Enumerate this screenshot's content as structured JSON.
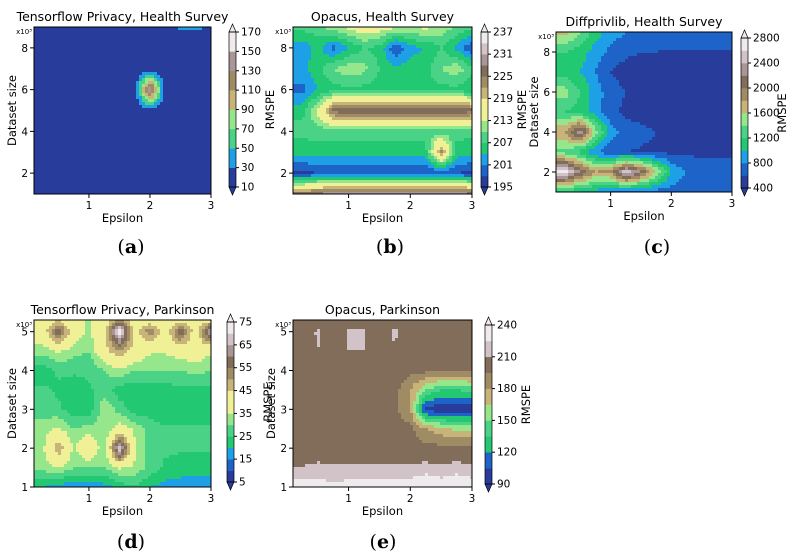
{
  "colors": {
    "scale": [
      "#283c9b",
      "#1e64c8",
      "#1ea0e6",
      "#23c873",
      "#4ad286",
      "#96e68c",
      "#f0f096",
      "#c8b478",
      "#a08c64",
      "#826c5a",
      "#aa9696",
      "#d2c3c8",
      "#eeeaee"
    ],
    "frame": "#000000"
  },
  "chart_data": [
    {
      "panel": "a",
      "type": "contour",
      "title": "Tensorflow Privacy, Health Survey",
      "xlabel": "Epsilon",
      "ylabel": "Dataset size",
      "y_multiplier": "x10³",
      "cbar_label": "RMSPE",
      "xlim": [
        0.1,
        3
      ],
      "ylim": [
        1,
        9
      ],
      "xticks": [
        "1",
        "2",
        "3"
      ],
      "yticks": [
        "2",
        "4",
        "6",
        "8"
      ],
      "cbar_ticks": [
        "170",
        "150",
        "130",
        "110",
        "90",
        "70",
        "50",
        "30",
        "10"
      ],
      "levels": [
        10,
        30,
        50,
        70,
        90,
        110,
        130,
        150,
        170
      ],
      "vmin": 10,
      "vmax": 170,
      "caption": "a",
      "x": [
        0.25,
        0.5,
        0.75,
        1.0,
        1.25,
        1.5,
        1.75,
        2.0,
        2.25,
        2.5,
        2.75,
        3.0
      ],
      "y": [
        1,
        2,
        3,
        4,
        5,
        6,
        7,
        8,
        9
      ],
      "z": [
        [
          30,
          28,
          25,
          22,
          20,
          20,
          20,
          24,
          28,
          30,
          28,
          25
        ],
        [
          22,
          20,
          18,
          16,
          15,
          15,
          15,
          18,
          22,
          25,
          22,
          20
        ],
        [
          20,
          18,
          16,
          15,
          14,
          14,
          14,
          15,
          16,
          18,
          16,
          15
        ],
        [
          20,
          18,
          16,
          15,
          14,
          14,
          14,
          15,
          15,
          15,
          15,
          15
        ],
        [
          20,
          18,
          16,
          15,
          14,
          14,
          14,
          15,
          15,
          15,
          15,
          15
        ],
        [
          20,
          18,
          16,
          15,
          14,
          14,
          14,
          160,
          15,
          15,
          15,
          15
        ],
        [
          20,
          18,
          16,
          15,
          14,
          14,
          14,
          15,
          15,
          15,
          15,
          15
        ],
        [
          22,
          20,
          18,
          15,
          14,
          14,
          14,
          15,
          15,
          15,
          15,
          18
        ],
        [
          30,
          30,
          28,
          25,
          22,
          22,
          22,
          25,
          28,
          32,
          32,
          30
        ]
      ]
    },
    {
      "panel": "b",
      "type": "contour",
      "title": "Opacus, Health Survey",
      "xlabel": "Epsilon",
      "ylabel": "",
      "y_multiplier": "x10³",
      "cbar_label": "RMSPE",
      "xlim": [
        0.1,
        3
      ],
      "ylim": [
        1,
        9
      ],
      "xticks": [
        "1",
        "2",
        "3"
      ],
      "yticks": [
        "2",
        "4",
        "6",
        "8"
      ],
      "cbar_ticks": [
        "237",
        "231",
        "225",
        "219",
        "213",
        "207",
        "201",
        "195"
      ],
      "levels": [
        195,
        198,
        201,
        204,
        207,
        210,
        213,
        216,
        219,
        222,
        225,
        228,
        231,
        234,
        237
      ],
      "vmin": 195,
      "vmax": 237,
      "caption": "b",
      "x": [
        0.25,
        0.5,
        0.75,
        1.0,
        1.25,
        1.5,
        1.75,
        2.0,
        2.25,
        2.5,
        2.75,
        3.0
      ],
      "y": [
        1,
        2,
        3,
        4,
        5,
        6,
        7,
        8,
        9
      ],
      "z": [
        [
          226,
          228,
          230,
          230,
          230,
          230,
          230,
          230,
          230,
          230,
          230,
          228
        ],
        [
          197,
          198,
          198,
          198,
          198,
          198,
          198,
          198,
          198,
          198,
          198,
          197
        ],
        [
          205,
          206,
          206,
          206,
          206,
          206,
          206,
          206,
          206,
          224,
          206,
          205
        ],
        [
          208,
          208,
          208,
          208,
          208,
          208,
          208,
          208,
          208,
          208,
          208,
          208
        ],
        [
          206,
          214,
          226,
          228,
          228,
          228,
          228,
          228,
          228,
          228,
          228,
          226
        ],
        [
          200,
          204,
          206,
          206,
          206,
          206,
          206,
          206,
          206,
          206,
          206,
          204
        ],
        [
          203,
          206,
          210,
          212,
          211,
          207,
          205,
          205,
          206,
          210,
          212,
          208
        ],
        [
          202,
          205,
          200,
          204,
          207,
          206,
          198,
          203,
          204,
          207,
          203,
          198
        ],
        [
          208,
          209,
          212,
          214,
          216,
          215,
          214,
          213,
          214,
          212,
          210,
          208
        ]
      ]
    },
    {
      "panel": "c",
      "type": "contour",
      "title": "Diffprivlib, Health Survey",
      "xlabel": "Epsilon",
      "ylabel": "Dataset size",
      "y_multiplier": "x10³",
      "cbar_label": "RMSPE",
      "xlim": [
        0.1,
        3
      ],
      "ylim": [
        1,
        9
      ],
      "xticks": [
        "1",
        "2",
        "3"
      ],
      "yticks": [
        "2",
        "4",
        "6",
        "8"
      ],
      "cbar_ticks": [
        "2800",
        "2400",
        "2000",
        "1600",
        "1200",
        "800",
        "400"
      ],
      "levels": [
        400,
        600,
        800,
        1000,
        1200,
        1400,
        1600,
        1800,
        2000,
        2200,
        2400,
        2600,
        2800
      ],
      "vmin": 400,
      "vmax": 2800,
      "caption": "c",
      "x": [
        0.25,
        0.5,
        0.75,
        1.0,
        1.25,
        1.5,
        1.75,
        2.0,
        2.25,
        2.5,
        2.75,
        3.0
      ],
      "y": [
        1,
        2,
        3,
        4,
        5,
        6,
        7,
        8,
        9
      ],
      "z": [
        [
          1100,
          1000,
          900,
          800,
          750,
          700,
          700,
          700,
          650,
          650,
          650,
          650
        ],
        [
          2700,
          2200,
          1800,
          1900,
          2600,
          2200,
          1600,
          1000,
          800,
          750,
          700,
          700
        ],
        [
          1300,
          1100,
          800,
          650,
          600,
          580,
          560,
          550,
          550,
          550,
          550,
          550
        ],
        [
          1800,
          2400,
          1500,
          900,
          700,
          650,
          600,
          550,
          520,
          520,
          520,
          520
        ],
        [
          1200,
          1100,
          900,
          650,
          550,
          520,
          500,
          500,
          500,
          500,
          500,
          500
        ],
        [
          1500,
          1200,
          900,
          700,
          600,
          580,
          570,
          560,
          550,
          550,
          550,
          550
        ],
        [
          1100,
          1000,
          800,
          600,
          500,
          480,
          470,
          460,
          460,
          460,
          460,
          460
        ],
        [
          1200,
          1100,
          900,
          750,
          650,
          600,
          600,
          580,
          580,
          580,
          580,
          580
        ],
        [
          1700,
          1400,
          1100,
          900,
          800,
          800,
          750,
          750,
          750,
          750,
          750,
          750
        ]
      ]
    },
    {
      "panel": "d",
      "type": "contour",
      "title": "Tensorflow Privacy, Parkinson",
      "xlabel": "Epsilon",
      "ylabel": "Dataset size",
      "y_multiplier": "x10³",
      "cbar_label": "RMSPE",
      "xlim": [
        0.1,
        3
      ],
      "ylim": [
        1,
        5.3
      ],
      "xticks": [
        "1",
        "2",
        "3"
      ],
      "yticks": [
        "1",
        "2",
        "3",
        "4",
        "5"
      ],
      "cbar_ticks": [
        "75",
        "65",
        "55",
        "45",
        "35",
        "25",
        "15",
        "5"
      ],
      "levels": [
        5,
        10,
        15,
        20,
        25,
        30,
        35,
        40,
        45,
        50,
        55,
        60,
        65,
        70,
        75
      ],
      "vmin": 5,
      "vmax": 75,
      "caption": "d",
      "x": [
        0.25,
        0.5,
        0.75,
        1.0,
        1.25,
        1.5,
        1.75,
        2.0,
        2.25,
        2.5,
        2.75,
        3.0
      ],
      "y": [
        1,
        1.5,
        2,
        2.5,
        3,
        3.5,
        4,
        4.5,
        5,
        5.3
      ],
      "z": [
        [
          20,
          18,
          16,
          16,
          18,
          22,
          24,
          20,
          18,
          18,
          18,
          18
        ],
        [
          32,
          36,
          30,
          30,
          30,
          36,
          34,
          28,
          24,
          22,
          22,
          22
        ],
        [
          34,
          50,
          34,
          44,
          30,
          70,
          36,
          28,
          26,
          26,
          26,
          26
        ],
        [
          32,
          36,
          30,
          32,
          30,
          38,
          34,
          28,
          26,
          26,
          26,
          26
        ],
        [
          28,
          26,
          22,
          22,
          34,
          28,
          22,
          22,
          20,
          22,
          22,
          22
        ],
        [
          26,
          24,
          22,
          24,
          28,
          22,
          22,
          22,
          22,
          24,
          24,
          24
        ],
        [
          22,
          26,
          26,
          26,
          30,
          34,
          30,
          30,
          30,
          30,
          32,
          30
        ],
        [
          32,
          36,
          32,
          30,
          42,
          50,
          42,
          36,
          36,
          38,
          40,
          36
        ],
        [
          40,
          60,
          40,
          34,
          42,
          74,
          42,
          54,
          40,
          60,
          40,
          68
        ],
        [
          38,
          44,
          38,
          34,
          40,
          50,
          40,
          40,
          38,
          42,
          40,
          42
        ]
      ]
    },
    {
      "panel": "e",
      "type": "contour",
      "title": "Opacus, Parkinson",
      "xlabel": "Epsilon",
      "ylabel": "Dataset size",
      "y_multiplier": "x10³",
      "cbar_label": "RMSPE",
      "xlim": [
        0.1,
        3
      ],
      "ylim": [
        1,
        5.3
      ],
      "xticks": [
        "1",
        "2",
        "3"
      ],
      "yticks": [
        "1",
        "2",
        "3",
        "4",
        "5"
      ],
      "cbar_ticks": [
        "240",
        "210",
        "180",
        "150",
        "120",
        "90"
      ],
      "levels": [
        90,
        105,
        120,
        135,
        150,
        165,
        180,
        195,
        210,
        225,
        240
      ],
      "vmin": 90,
      "vmax": 240,
      "caption": "e",
      "x": [
        0.25,
        0.5,
        0.75,
        1.0,
        1.25,
        1.5,
        1.75,
        2.0,
        2.25,
        2.5,
        2.75,
        3.0
      ],
      "y": [
        1,
        1.5,
        2,
        2.5,
        3,
        3.5,
        4,
        4.5,
        5,
        5.3
      ],
      "z": [
        [
          236,
          232,
          230,
          232,
          232,
          232,
          232,
          236,
          246,
          236,
          246,
          236
        ],
        [
          210,
          214,
          212,
          212,
          212,
          212,
          212,
          212,
          214,
          212,
          214,
          212
        ],
        [
          202,
          200,
          200,
          200,
          200,
          200,
          200,
          200,
          200,
          200,
          200,
          200
        ],
        [
          200,
          200,
          200,
          200,
          200,
          200,
          200,
          200,
          180,
          170,
          160,
          160
        ],
        [
          200,
          210,
          200,
          200,
          200,
          200,
          200,
          180,
          100,
          92,
          92,
          94
        ],
        [
          200,
          200,
          200,
          200,
          200,
          200,
          200,
          180,
          150,
          135,
          135,
          140
        ],
        [
          200,
          205,
          200,
          205,
          205,
          200,
          205,
          200,
          200,
          200,
          200,
          200
        ],
        [
          200,
          210,
          200,
          210,
          210,
          200,
          210,
          200,
          205,
          200,
          205,
          205
        ],
        [
          200,
          212,
          200,
          212,
          212,
          200,
          212,
          200,
          205,
          200,
          205,
          205
        ],
        [
          200,
          206,
          200,
          206,
          206,
          200,
          206,
          200,
          200,
          200,
          200,
          200
        ]
      ]
    }
  ]
}
